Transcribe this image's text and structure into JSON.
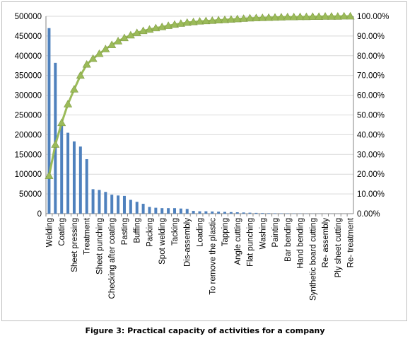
{
  "caption": "Figure 3: Practical capacity of activities for a company",
  "colors": {
    "bar": "#4f81bd",
    "line": "#9bbb59",
    "marker": "#9bbb59",
    "grid": "#d9d9d9",
    "axis": "#868686",
    "text": "#000000"
  },
  "chart_data": {
    "type": "bar",
    "title": "",
    "categories": [
      "Welding",
      "",
      "Coating",
      "",
      "Sheet pressing",
      "",
      "Treatment",
      "",
      "Sheet punching",
      "",
      "Checking after coating",
      "",
      "Pasting",
      "",
      "Buffing",
      "",
      "Packing",
      "",
      "Spot welding",
      "",
      "Tacking",
      "",
      "Dis-assembly",
      "",
      "Loading",
      "",
      "To remove the plastic",
      "",
      "Tapping",
      "",
      "Angle cutting",
      "",
      "Flat punching",
      "",
      "Washing",
      "",
      "Painting",
      "",
      "Bar bending",
      "",
      "Hand bending",
      "",
      "Synthetic board cutting",
      "",
      "Re- assembly",
      "",
      "Ply sheet cutting",
      "",
      "Re- treatment"
    ],
    "series": [
      {
        "type": "bar",
        "axis": "left",
        "values": [
          470000,
          382000,
          228000,
          205000,
          183000,
          170000,
          138000,
          62000,
          60000,
          55000,
          48000,
          46000,
          45000,
          35000,
          30000,
          25000,
          17000,
          15000,
          14000,
          14000,
          14000,
          13000,
          12000,
          7000,
          6000,
          6000,
          5500,
          5000,
          4500,
          4000,
          3500,
          3000,
          2500,
          2000,
          1500,
          1200,
          1000,
          800,
          700,
          600,
          500,
          400,
          300,
          250,
          200,
          150,
          100,
          80,
          50
        ]
      },
      {
        "type": "line",
        "axis": "right",
        "values": [
          19.2,
          35.0,
          46.0,
          55.5,
          63.0,
          70.0,
          75.6,
          78.5,
          81.0,
          83.4,
          85.5,
          87.4,
          89.0,
          90.4,
          91.6,
          92.6,
          93.3,
          94.0,
          94.6,
          95.2,
          95.8,
          96.3,
          96.8,
          97.1,
          97.4,
          97.6,
          97.8,
          98.0,
          98.2,
          98.4,
          98.6,
          98.8,
          99.0,
          99.1,
          99.2,
          99.3,
          99.4,
          99.5,
          99.6,
          99.6,
          99.7,
          99.7,
          99.8,
          99.8,
          99.9,
          99.9,
          99.9,
          100.0,
          100.0
        ]
      }
    ],
    "y_left": {
      "min": 0,
      "max": 500000,
      "step": 50000,
      "tick_labels": [
        "0",
        "50000",
        "100000",
        "150000",
        "200000",
        "250000",
        "300000",
        "350000",
        "400000",
        "450000",
        "500000"
      ]
    },
    "y_right": {
      "min": 0,
      "max": 100,
      "step": 10,
      "tick_labels": [
        "0.00%",
        "10.00%",
        "20.00%",
        "30.00%",
        "40.00%",
        "50.00%",
        "60.00%",
        "70.00%",
        "80.00%",
        "90.00%",
        "100.00%"
      ]
    },
    "grid": true,
    "legend": "none"
  }
}
